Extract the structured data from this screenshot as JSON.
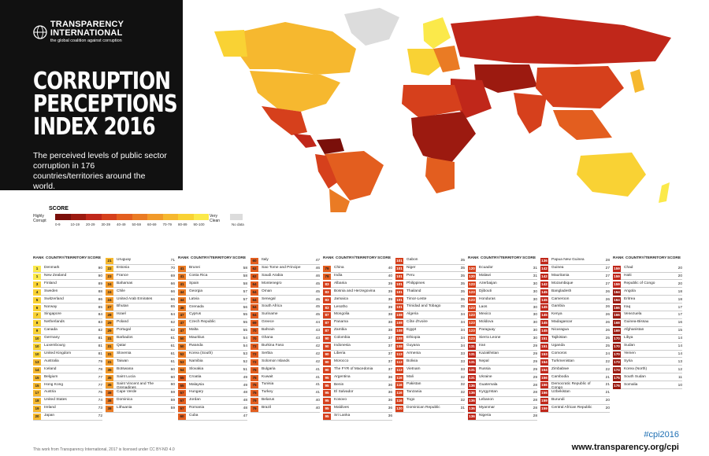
{
  "header": {
    "org_name": "TRANSPARENCY INTERNATIONAL",
    "org_tagline": "the global coalition against corruption",
    "title_lines": [
      "CORRUPTION",
      "PERCEPTIONS",
      "INDEX 2016"
    ],
    "description": "The perceived levels of public sector corruption in 176 countries/territories around the world."
  },
  "legend": {
    "title": "SCORE",
    "low_label": "Highly Corrupt",
    "high_label": "Very Clean",
    "ranges": [
      "0-9",
      "10-19",
      "20-29",
      "30-39",
      "40-49",
      "50-59",
      "60-69",
      "70-79",
      "80-89",
      "90-100"
    ],
    "colors": [
      "#7a0f0a",
      "#9c1a10",
      "#c0271a",
      "#d6401c",
      "#e35e1f",
      "#ea7b24",
      "#f19a2a",
      "#f6b82f",
      "#f9d234",
      "#fbe94a"
    ],
    "no_data_label": "No data",
    "no_data_color": "#dcdcdc"
  },
  "table_header": {
    "rank": "RANK",
    "country": "COUNTRY/TERRITORY",
    "score": "SCORE"
  },
  "footer": {
    "license": "This work from Transparency International, 2017 is licensed under CC BY-ND 4.0",
    "hashtag": "#cpi2016",
    "url": "www.transparency.org/cpi"
  },
  "chart_data": {
    "type": "table",
    "title": "CORRUPTION PERCEPTIONS INDEX 2016",
    "columns": [
      "RANK",
      "COUNTRY/TERRITORY",
      "SCORE"
    ],
    "rows": [
      [
        1,
        "Denmark",
        90
      ],
      [
        1,
        "New Zealand",
        90
      ],
      [
        3,
        "Finland",
        89
      ],
      [
        4,
        "Sweden",
        88
      ],
      [
        5,
        "Switzerland",
        86
      ],
      [
        6,
        "Norway",
        85
      ],
      [
        7,
        "Singapore",
        84
      ],
      [
        8,
        "Netherlands",
        83
      ],
      [
        9,
        "Canada",
        82
      ],
      [
        10,
        "Germany",
        81
      ],
      [
        10,
        "Luxembourg",
        81
      ],
      [
        10,
        "United Kingdom",
        81
      ],
      [
        13,
        "Australia",
        79
      ],
      [
        14,
        "Iceland",
        78
      ],
      [
        15,
        "Belgium",
        77
      ],
      [
        15,
        "Hong Kong",
        77
      ],
      [
        17,
        "Austria",
        75
      ],
      [
        18,
        "United States",
        74
      ],
      [
        19,
        "Ireland",
        73
      ],
      [
        20,
        "Japan",
        72
      ],
      [
        21,
        "Uruguay",
        71
      ],
      [
        22,
        "Estonia",
        70
      ],
      [
        23,
        "France",
        69
      ],
      [
        24,
        "Bahamas",
        66
      ],
      [
        24,
        "Chile",
        66
      ],
      [
        24,
        "United Arab Emirates",
        66
      ],
      [
        27,
        "Bhutan",
        65
      ],
      [
        28,
        "Israel",
        64
      ],
      [
        29,
        "Poland",
        62
      ],
      [
        29,
        "Portugal",
        62
      ],
      [
        31,
        "Barbados",
        61
      ],
      [
        31,
        "Qatar",
        61
      ],
      [
        31,
        "Slovenia",
        61
      ],
      [
        31,
        "Taiwan",
        61
      ],
      [
        35,
        "Botswana",
        60
      ],
      [
        35,
        "Saint Lucia",
        60
      ],
      [
        35,
        "Saint Vincent and The Grenadines",
        60
      ],
      [
        38,
        "Cape Verde",
        59
      ],
      [
        38,
        "Dominica",
        59
      ],
      [
        38,
        "Lithuania",
        59
      ],
      [
        41,
        "Brunei",
        58
      ],
      [
        41,
        "Costa Rica",
        58
      ],
      [
        41,
        "Spain",
        58
      ],
      [
        44,
        "Georgia",
        57
      ],
      [
        44,
        "Latvia",
        57
      ],
      [
        46,
        "Grenada",
        56
      ],
      [
        47,
        "Cyprus",
        55
      ],
      [
        47,
        "Czech Republic",
        55
      ],
      [
        47,
        "Malta",
        55
      ],
      [
        50,
        "Mauritius",
        54
      ],
      [
        50,
        "Rwanda",
        54
      ],
      [
        52,
        "Korea (South)",
        53
      ],
      [
        53,
        "Namibia",
        52
      ],
      [
        54,
        "Slovakia",
        51
      ],
      [
        55,
        "Croatia",
        49
      ],
      [
        55,
        "Malaysia",
        49
      ],
      [
        57,
        "Hungary",
        48
      ],
      [
        57,
        "Jordan",
        48
      ],
      [
        57,
        "Romania",
        48
      ],
      [
        60,
        "Cuba",
        47
      ],
      [
        60,
        "Italy",
        47
      ],
      [
        62,
        "Sao Tome and Principe",
        46
      ],
      [
        62,
        "Saudi Arabia",
        46
      ],
      [
        64,
        "Montenegro",
        45
      ],
      [
        64,
        "Oman",
        45
      ],
      [
        64,
        "Senegal",
        45
      ],
      [
        64,
        "South Africa",
        45
      ],
      [
        64,
        "Suriname",
        45
      ],
      [
        69,
        "Greece",
        44
      ],
      [
        70,
        "Bahrain",
        43
      ],
      [
        70,
        "Ghana",
        43
      ],
      [
        72,
        "Burkina Faso",
        42
      ],
      [
        72,
        "Serbia",
        42
      ],
      [
        72,
        "Solomon Islands",
        42
      ],
      [
        75,
        "Bulgaria",
        41
      ],
      [
        75,
        "Kuwait",
        41
      ],
      [
        75,
        "Tunisia",
        41
      ],
      [
        75,
        "Turkey",
        41
      ],
      [
        79,
        "Belarus",
        40
      ],
      [
        79,
        "Brazil",
        40
      ],
      [
        79,
        "China",
        40
      ],
      [
        79,
        "India",
        40
      ],
      [
        83,
        "Albania",
        39
      ],
      [
        83,
        "Bosnia and Herzegovina",
        39
      ],
      [
        83,
        "Jamaica",
        39
      ],
      [
        83,
        "Lesotho",
        39
      ],
      [
        87,
        "Mongolia",
        38
      ],
      [
        87,
        "Panama",
        38
      ],
      [
        87,
        "Zambia",
        38
      ],
      [
        90,
        "Colombia",
        37
      ],
      [
        90,
        "Indonesia",
        37
      ],
      [
        90,
        "Liberia",
        37
      ],
      [
        90,
        "Morocco",
        37
      ],
      [
        90,
        "The FYR of Macedonia",
        37
      ],
      [
        95,
        "Argentina",
        36
      ],
      [
        95,
        "Benin",
        36
      ],
      [
        95,
        "El Salvador",
        36
      ],
      [
        95,
        "Kosovo",
        36
      ],
      [
        95,
        "Maldives",
        36
      ],
      [
        95,
        "Sri Lanka",
        36
      ],
      [
        101,
        "Gabon",
        35
      ],
      [
        101,
        "Niger",
        35
      ],
      [
        101,
        "Peru",
        35
      ],
      [
        101,
        "Philippines",
        35
      ],
      [
        101,
        "Thailand",
        35
      ],
      [
        101,
        "Timor-Leste",
        35
      ],
      [
        101,
        "Trinidad and Tobago",
        35
      ],
      [
        108,
        "Algeria",
        34
      ],
      [
        108,
        "Côte d'Ivoire",
        34
      ],
      [
        108,
        "Egypt",
        34
      ],
      [
        108,
        "Ethiopia",
        34
      ],
      [
        108,
        "Guyana",
        34
      ],
      [
        113,
        "Armenia",
        33
      ],
      [
        113,
        "Bolivia",
        33
      ],
      [
        113,
        "Vietnam",
        33
      ],
      [
        116,
        "Mali",
        32
      ],
      [
        116,
        "Pakistan",
        32
      ],
      [
        116,
        "Tanzania",
        32
      ],
      [
        116,
        "Togo",
        32
      ],
      [
        120,
        "Dominican Republic",
        31
      ],
      [
        120,
        "Ecuador",
        31
      ],
      [
        120,
        "Malawi",
        31
      ],
      [
        123,
        "Azerbaijan",
        30
      ],
      [
        123,
        "Djibouti",
        30
      ],
      [
        123,
        "Honduras",
        30
      ],
      [
        123,
        "Laos",
        30
      ],
      [
        123,
        "Mexico",
        30
      ],
      [
        123,
        "Moldova",
        30
      ],
      [
        123,
        "Paraguay",
        30
      ],
      [
        123,
        "Sierra Leone",
        30
      ],
      [
        131,
        "Iran",
        29
      ],
      [
        131,
        "Kazakhstan",
        29
      ],
      [
        131,
        "Nepal",
        29
      ],
      [
        131,
        "Russia",
        29
      ],
      [
        131,
        "Ukraine",
        29
      ],
      [
        136,
        "Guatemala",
        28
      ],
      [
        136,
        "Kyrgyzstan",
        28
      ],
      [
        136,
        "Lebanon",
        28
      ],
      [
        136,
        "Myanmar",
        28
      ],
      [
        136,
        "Nigeria",
        28
      ],
      [
        136,
        "Papua New Guinea",
        28
      ],
      [
        142,
        "Guinea",
        27
      ],
      [
        142,
        "Mauritania",
        27
      ],
      [
        142,
        "Mozambique",
        27
      ],
      [
        145,
        "Bangladesh",
        26
      ],
      [
        145,
        "Cameroon",
        26
      ],
      [
        145,
        "Gambia",
        26
      ],
      [
        145,
        "Kenya",
        26
      ],
      [
        145,
        "Madagascar",
        26
      ],
      [
        145,
        "Nicaragua",
        26
      ],
      [
        151,
        "Tajikistan",
        25
      ],
      [
        151,
        "Uganda",
        25
      ],
      [
        153,
        "Comoros",
        24
      ],
      [
        154,
        "Turkmenistan",
        22
      ],
      [
        154,
        "Zimbabwe",
        22
      ],
      [
        156,
        "Cambodia",
        21
      ],
      [
        156,
        "Democratic Republic of Congo",
        21
      ],
      [
        156,
        "Uzbekistan",
        21
      ],
      [
        159,
        "Burundi",
        20
      ],
      [
        159,
        "Central African Republic",
        20
      ],
      [
        159,
        "Chad",
        20
      ],
      [
        159,
        "Haiti",
        20
      ],
      [
        159,
        "Republic of Congo",
        20
      ],
      [
        164,
        "Angola",
        18
      ],
      [
        164,
        "Eritrea",
        18
      ],
      [
        166,
        "Iraq",
        17
      ],
      [
        166,
        "Venezuela",
        17
      ],
      [
        168,
        "Guinea-Bissau",
        16
      ],
      [
        169,
        "Afghanistan",
        15
      ],
      [
        170,
        "Libya",
        14
      ],
      [
        170,
        "Sudan",
        14
      ],
      [
        170,
        "Yemen",
        14
      ],
      [
        173,
        "Syria",
        13
      ],
      [
        174,
        "Korea (North)",
        12
      ],
      [
        175,
        "South Sudan",
        11
      ],
      [
        176,
        "Somalia",
        10
      ]
    ]
  }
}
